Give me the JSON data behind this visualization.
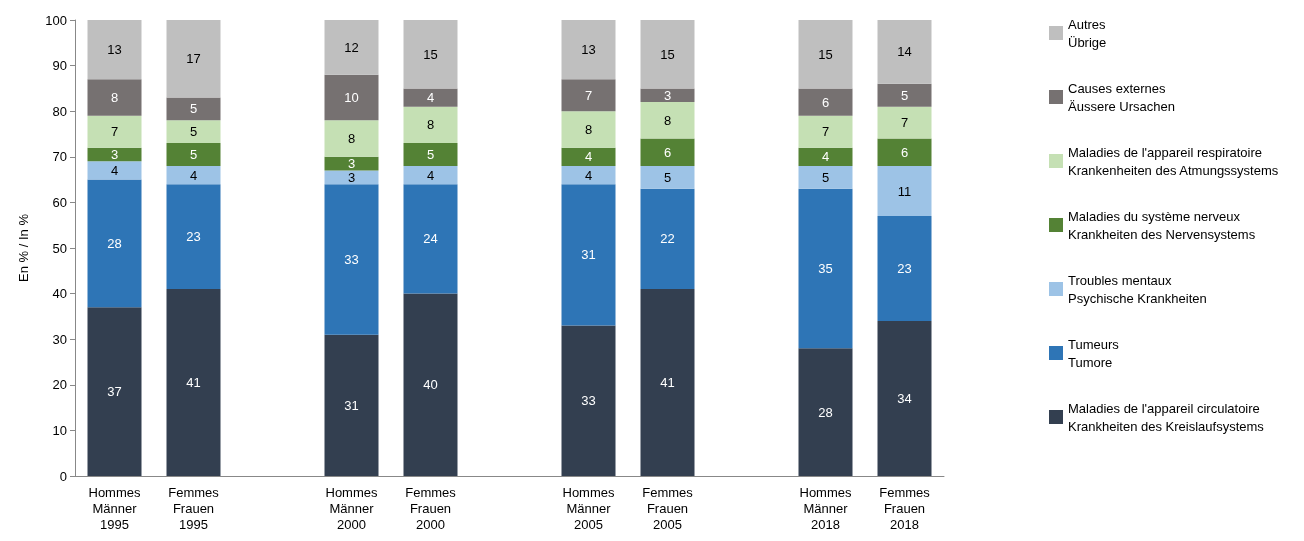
{
  "chart_data": {
    "type": "bar",
    "stacked": true,
    "ylabel": "En % / In %",
    "categories": [
      "Hommes\nMänner\n1995",
      "Femmes\nFrauen\n1995",
      null,
      "Hommes\nMänner\n2000",
      "Femmes\nFrauen\n2000",
      null,
      "Hommes\nMänner\n2005",
      "Femmes\nFrauen\n2005",
      null,
      "Hommes\nMänner\n2018",
      "Femmes\nFrauen\n2018"
    ],
    "series": [
      {
        "name": "Maladies de l'appareil circulatoire\nKrankheiten des Kreislaufsystems",
        "color": "#333f50",
        "values": [
          37,
          41,
          null,
          31,
          40,
          null,
          33,
          41,
          null,
          28,
          34
        ]
      },
      {
        "name": "Tumeurs\nTumore",
        "color": "#2e75b6",
        "values": [
          28,
          23,
          null,
          33,
          24,
          null,
          31,
          22,
          null,
          35,
          23
        ]
      },
      {
        "name": "Troubles mentaux\nPsychische Krankheiten",
        "color": "#9dc3e6",
        "values": [
          4,
          4,
          null,
          3,
          4,
          null,
          4,
          5,
          null,
          5,
          11
        ]
      },
      {
        "name": "Maladies du système nerveux\nKrankheiten des Nervensystems",
        "color": "#548235",
        "values": [
          3,
          5,
          null,
          3,
          5,
          null,
          4,
          6,
          null,
          4,
          6
        ]
      },
      {
        "name": "Maladies de l'appareil respiratoire\nKrankenheiten des Atmungssystems",
        "color": "#c5e0b4",
        "values": [
          7,
          5,
          null,
          8,
          8,
          null,
          8,
          8,
          null,
          7,
          7
        ]
      },
      {
        "name": "Causes externes\nÄussere Ursachen",
        "color": "#767171",
        "values": [
          8,
          5,
          null,
          10,
          4,
          null,
          7,
          3,
          null,
          6,
          5
        ]
      },
      {
        "name": "Autres\nÜbrige",
        "color": "#bfbfbf",
        "values": [
          13,
          17,
          null,
          12,
          15,
          null,
          13,
          15,
          null,
          15,
          14
        ]
      }
    ],
    "ylim": [
      0,
      100
    ],
    "yticks": [
      0,
      10,
      20,
      30,
      40,
      50,
      60,
      70,
      80,
      90,
      100
    ],
    "grid": false,
    "legend": "right",
    "data_labels": true
  }
}
